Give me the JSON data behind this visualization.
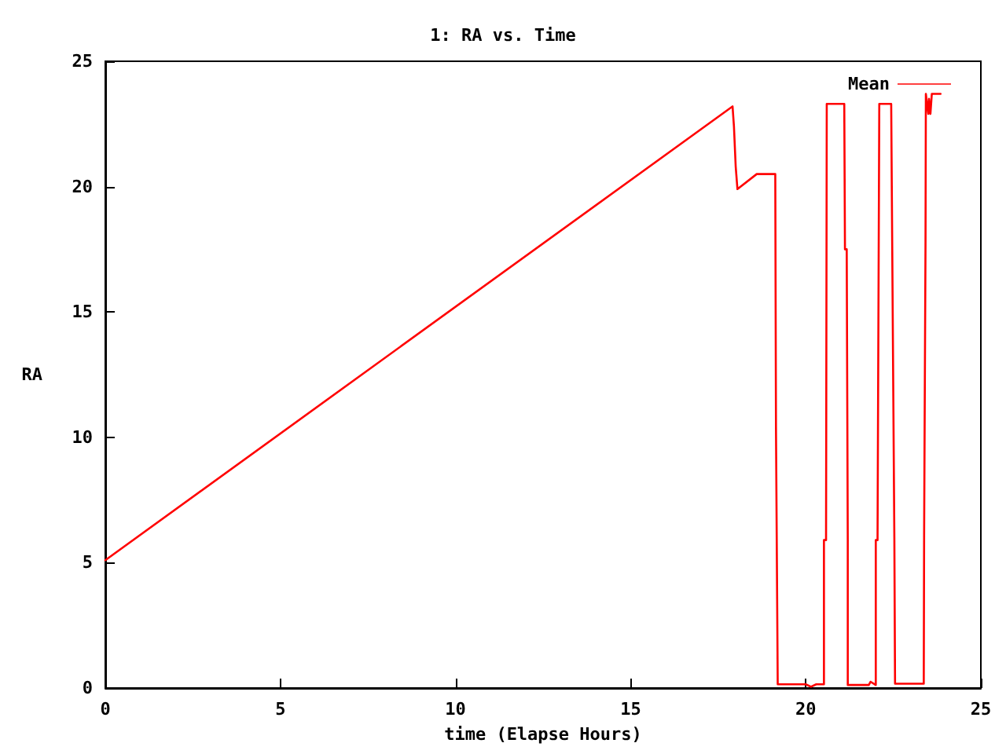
{
  "chart_data": {
    "type": "line",
    "title": "1: RA vs. Time",
    "xlabel": "time (Elapse Hours)",
    "ylabel": "RA",
    "xlim": [
      0,
      25
    ],
    "xticks": [
      0,
      5,
      10,
      15,
      20,
      25
    ],
    "ylim": [
      0,
      25
    ],
    "yticks": [
      0,
      5,
      10,
      15,
      20,
      25
    ],
    "grid": false,
    "legend": "top right",
    "marker": "none",
    "line_style": "solid",
    "series": [
      {
        "name": "Mean",
        "color": "#ff0000",
        "x": [
          0,
          17.91,
          17.95,
          18.0,
          18.05,
          18.6,
          19.13,
          19.15,
          19.18,
          19.2,
          20.0,
          20.15,
          20.3,
          20.52,
          20.52,
          20.58,
          20.6,
          21.1,
          21.12,
          21.17,
          21.2,
          21.2,
          21.8,
          21.85,
          22.0,
          22.0,
          22.05,
          22.1,
          22.44,
          22.47,
          22.5,
          22.53,
          22.55,
          23.37,
          23.38,
          23.4,
          23.42,
          23.43,
          23.45,
          23.5,
          23.52,
          23.56,
          23.6,
          23.65,
          23.85
        ],
        "values": [
          5.1,
          23.2,
          22.4,
          20.8,
          19.9,
          20.5,
          20.5,
          10.4,
          10.4,
          0.15,
          0.15,
          0.05,
          0.15,
          0.15,
          5.9,
          5.9,
          23.3,
          23.3,
          17.5,
          17.5,
          5.9,
          0.12,
          0.12,
          0.25,
          0.12,
          5.9,
          5.9,
          23.3,
          23.3,
          17.5,
          17.5,
          6.0,
          0.17,
          0.17,
          6.1,
          6.1,
          17.8,
          23.7,
          23.7,
          22.9,
          23.5,
          22.9,
          23.7,
          23.7,
          23.7
        ]
      }
    ]
  }
}
